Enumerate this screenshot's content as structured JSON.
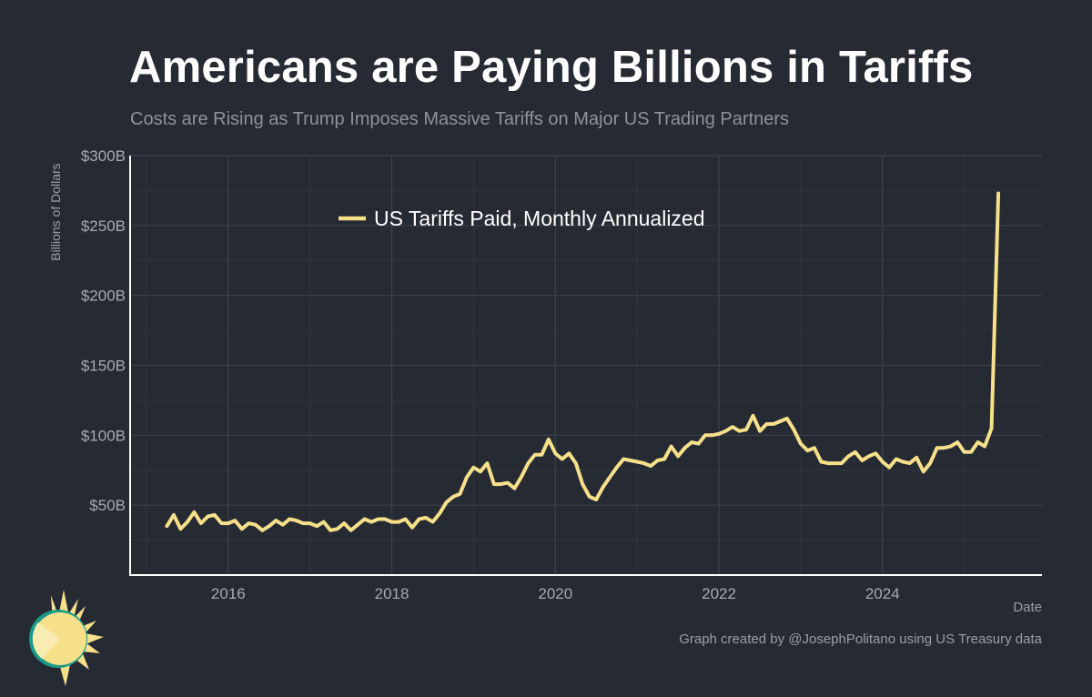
{
  "header": {
    "title": "Americans are Paying Billions in Tariffs",
    "subtitle": "Costs are Rising as Trump Imposes Massive Tariffs on Major US Trading Partners"
  },
  "footer": {
    "credit": "Graph created by @JosephPolitano using US Treasury data"
  },
  "colors": {
    "background": "#262a33",
    "line": "#f6e08a",
    "grid": "#3d424b",
    "axis": "#ffffff",
    "text_muted": "#9a9ea5"
  },
  "logo": {
    "icon": "sun-icon"
  },
  "chart_data": {
    "type": "line",
    "title": "Americans are Paying Billions in Tariffs",
    "subtitle": "Costs are Rising as Trump Imposes Massive Tariffs on Major US Trading Partners",
    "xlabel": "Date",
    "ylabel": "Billions of Dollars",
    "xlim": [
      2014.8,
      2025.95
    ],
    "ylim": [
      0,
      300
    ],
    "x_ticks": [
      2016,
      2018,
      2020,
      2022,
      2024
    ],
    "x_tick_labels": [
      "2016",
      "2018",
      "2020",
      "2022",
      "2024"
    ],
    "y_ticks": [
      50,
      100,
      150,
      200,
      250,
      300
    ],
    "y_tick_labels": [
      "$50B",
      "$100B",
      "$150B",
      "$200B",
      "$250B",
      "$300B"
    ],
    "grid": true,
    "legend_position": "top-left",
    "series": [
      {
        "name": "US Tariffs Paid, Monthly Annualized",
        "color": "#f6e08a",
        "x": [
          2015.25,
          2015.333,
          2015.417,
          2015.5,
          2015.583,
          2015.667,
          2015.75,
          2015.833,
          2015.917,
          2016.0,
          2016.083,
          2016.167,
          2016.25,
          2016.333,
          2016.417,
          2016.5,
          2016.583,
          2016.667,
          2016.75,
          2016.833,
          2016.917,
          2017.0,
          2017.083,
          2017.167,
          2017.25,
          2017.333,
          2017.417,
          2017.5,
          2017.583,
          2017.667,
          2017.75,
          2017.833,
          2017.917,
          2018.0,
          2018.083,
          2018.167,
          2018.25,
          2018.333,
          2018.417,
          2018.5,
          2018.583,
          2018.667,
          2018.75,
          2018.833,
          2018.917,
          2019.0,
          2019.083,
          2019.167,
          2019.25,
          2019.333,
          2019.417,
          2019.5,
          2019.583,
          2019.667,
          2019.75,
          2019.833,
          2019.917,
          2020.0,
          2020.083,
          2020.167,
          2020.25,
          2020.333,
          2020.417,
          2020.5,
          2020.583,
          2020.667,
          2020.75,
          2020.833,
          2020.917,
          2021.0,
          2021.083,
          2021.167,
          2021.25,
          2021.333,
          2021.417,
          2021.5,
          2021.583,
          2021.667,
          2021.75,
          2021.833,
          2021.917,
          2022.0,
          2022.083,
          2022.167,
          2022.25,
          2022.333,
          2022.417,
          2022.5,
          2022.583,
          2022.667,
          2022.75,
          2022.833,
          2022.917,
          2023.0,
          2023.083,
          2023.167,
          2023.25,
          2023.333,
          2023.417,
          2023.5,
          2023.583,
          2023.667,
          2023.75,
          2023.833,
          2023.917,
          2024.0,
          2024.083,
          2024.167,
          2024.25,
          2024.333,
          2024.417,
          2024.5,
          2024.583,
          2024.667,
          2024.75,
          2024.833,
          2024.917,
          2025.0,
          2025.083,
          2025.167,
          2025.25,
          2025.333,
          2025.417
        ],
        "values": [
          35,
          43,
          33,
          38,
          45,
          37,
          42,
          43,
          37,
          37,
          39,
          33,
          37,
          36,
          32,
          35,
          39,
          36,
          40,
          39,
          37,
          37,
          35,
          38,
          32,
          33,
          37,
          32,
          36,
          40,
          38,
          40,
          40,
          38,
          38,
          40,
          34,
          40,
          41,
          38,
          44,
          52,
          56,
          58,
          70,
          77,
          74,
          80,
          65,
          65,
          66,
          62,
          70,
          80,
          86,
          86,
          97,
          87,
          83,
          87,
          80,
          65,
          56,
          54,
          63,
          70,
          77,
          83,
          82,
          81,
          80,
          78,
          82,
          83,
          92,
          85,
          91,
          95,
          94,
          100,
          100,
          101,
          103,
          106,
          103,
          104,
          114,
          103,
          108,
          108,
          110,
          112,
          104,
          94,
          89,
          91,
          81,
          80,
          80,
          80,
          85,
          88,
          82,
          85,
          87,
          81,
          77,
          83,
          81,
          80,
          84,
          74,
          80,
          91,
          91,
          92,
          95,
          88,
          88,
          95,
          92,
          105,
          273
        ]
      }
    ]
  }
}
